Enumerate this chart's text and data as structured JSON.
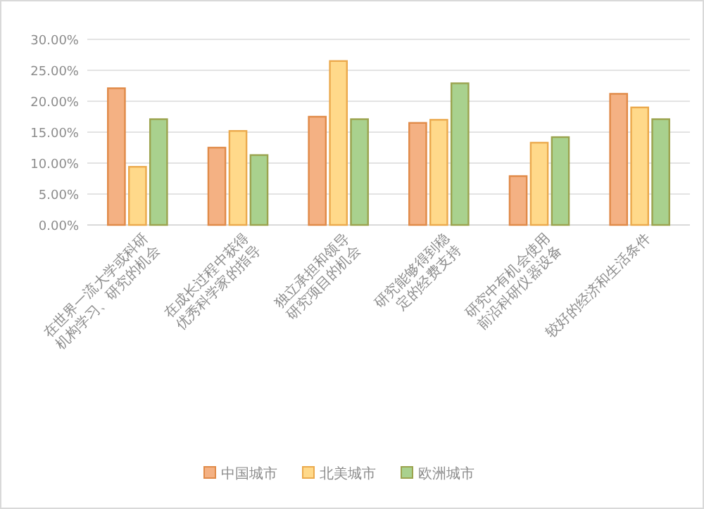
{
  "chart_data": {
    "type": "bar",
    "categories": [
      "在世界一流大学或科研机构学习、研究的机会",
      "在成长过程中获得优秀科学家的指导",
      "独立承担和领导研究项目的机会",
      "研究能够得到稳定的经费支持",
      "研究中有机会使用前沿科研仪器设备",
      "较好的经济和生活条件"
    ],
    "series": [
      {
        "name": "中国城市",
        "color": "#f4b183",
        "values": [
          22.1,
          12.5,
          17.5,
          16.5,
          7.9,
          21.2
        ]
      },
      {
        "name": "北美城市",
        "color": "#ffd98a",
        "values": [
          9.4,
          15.2,
          26.5,
          17.0,
          13.3,
          19.0
        ]
      },
      {
        "name": "欧洲城市",
        "color": "#a9d18e",
        "values": [
          17.1,
          11.3,
          17.1,
          22.9,
          14.2,
          17.1
        ]
      }
    ],
    "ylim": [
      0,
      30
    ],
    "yticks": [
      {
        "value": 0,
        "label": "0.00%"
      },
      {
        "value": 5,
        "label": "5.00%"
      },
      {
        "value": 10,
        "label": "10.00%"
      },
      {
        "value": 15,
        "label": "15.00%"
      },
      {
        "value": 20,
        "label": "20.00%"
      },
      {
        "value": 25,
        "label": "25.00%"
      },
      {
        "value": 30,
        "label": "30.00%"
      }
    ],
    "grid": "y",
    "legend": "bottom"
  }
}
